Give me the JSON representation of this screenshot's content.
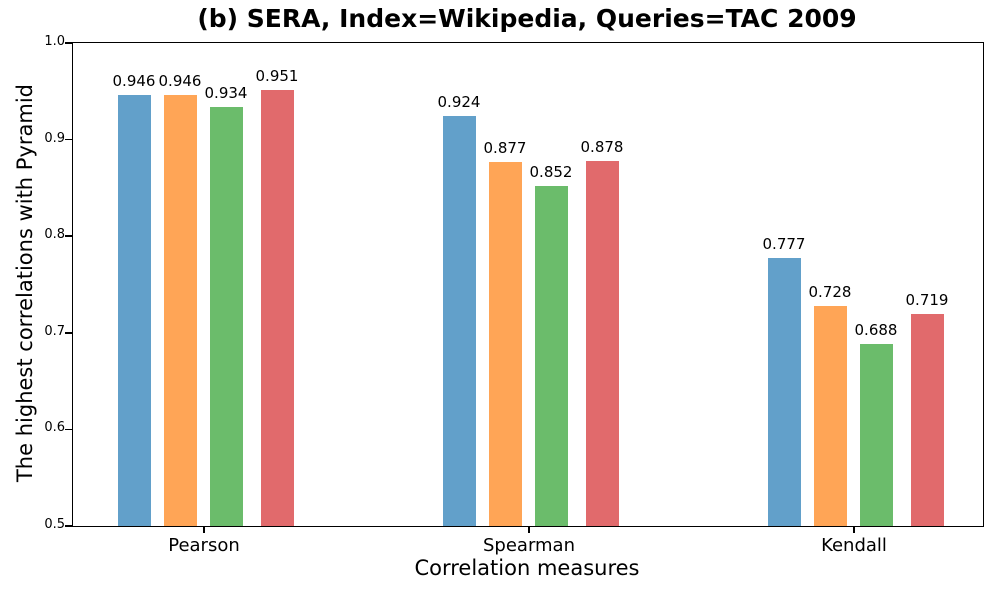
{
  "chart_data": {
    "type": "bar",
    "title": "(b) SERA, Index=Wikipedia, Queries=TAC 2009",
    "xlabel": "Correlation measures",
    "ylabel": "The highest correlations with Pyramid",
    "categories": [
      "Pearson",
      "Spearman",
      "Kendall"
    ],
    "series": [
      {
        "color": "#62A0CA",
        "values": [
          0.946,
          0.924,
          0.777
        ]
      },
      {
        "color": "#FFA556",
        "values": [
          0.946,
          0.877,
          0.728
        ]
      },
      {
        "color": "#6BBC6B",
        "values": [
          0.934,
          0.852,
          0.688
        ]
      },
      {
        "color": "#E16A6C",
        "values": [
          0.951,
          0.878,
          0.719
        ]
      }
    ],
    "bar_value_labels": [
      [
        "0.946",
        "0.924",
        "0.777"
      ],
      [
        "0.946",
        "0.877",
        "0.728"
      ],
      [
        "0.934",
        "0.852",
        "0.688"
      ],
      [
        "0.951",
        "0.878",
        "0.719"
      ]
    ],
    "ylim": [
      0.5,
      1.0
    ],
    "yticks": [
      "0.5",
      "0.6",
      "0.7",
      "0.8",
      "0.9",
      "1.0"
    ],
    "grid": false,
    "legend": "none",
    "text_color": "#000000"
  }
}
